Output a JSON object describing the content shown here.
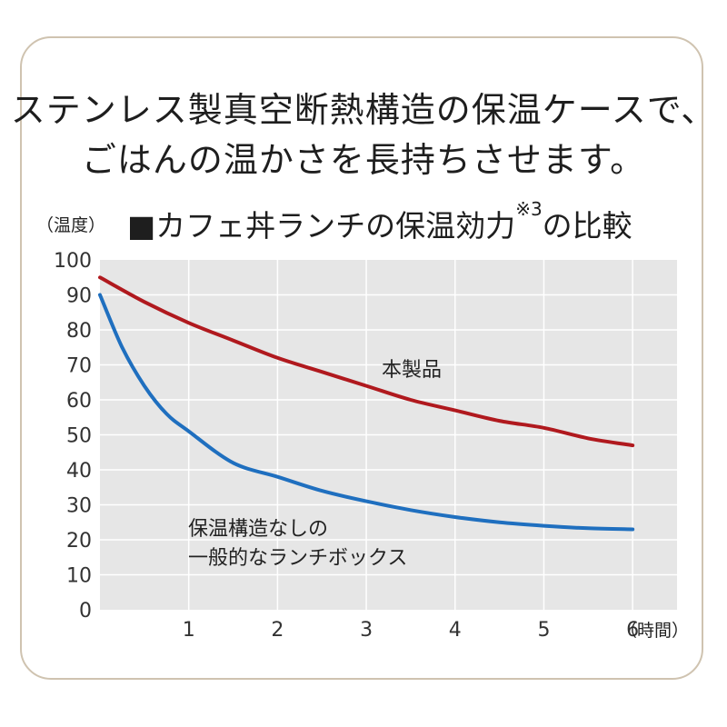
{
  "headline": {
    "line1": "ステンレス製真空断熱構造の保温ケースで、",
    "line2": "ごはんの温かさを長持ちさせます。"
  },
  "chart_data": {
    "type": "line",
    "title_main": "■カフェ丼ランチの保温効力",
    "title_note": "※3",
    "title_tail": "の比較",
    "ylabel": "（温度）",
    "xlabel": "（時間）",
    "ylim": [
      0,
      100
    ],
    "xlim": [
      0,
      6.5
    ],
    "y_ticks": [
      0,
      10,
      20,
      30,
      40,
      50,
      60,
      70,
      80,
      90,
      100
    ],
    "x_ticks": [
      1,
      2,
      3,
      4,
      5,
      6
    ],
    "grid": true,
    "series": [
      {
        "name": "本製品",
        "color": "#b0191e",
        "x": [
          0,
          0.5,
          1,
          1.5,
          2,
          2.5,
          3,
          3.5,
          4,
          4.5,
          5,
          5.5,
          6
        ],
        "y": [
          95,
          88,
          82,
          77,
          72,
          68,
          64,
          60,
          57,
          54,
          52,
          49,
          47
        ]
      },
      {
        "name": "保温構造なしの一般的なランチボックス",
        "label_lines": [
          "保温構造なしの",
          "一般的なランチボックス"
        ],
        "color": "#1f6fbf",
        "x": [
          0,
          0.25,
          0.5,
          0.75,
          1,
          1.5,
          2,
          2.5,
          3,
          3.5,
          4,
          4.5,
          5,
          5.5,
          6
        ],
        "y": [
          90,
          75,
          64,
          56,
          51,
          42,
          38,
          34,
          31,
          28.5,
          26.5,
          25,
          24,
          23.3,
          23
        ]
      }
    ]
  }
}
